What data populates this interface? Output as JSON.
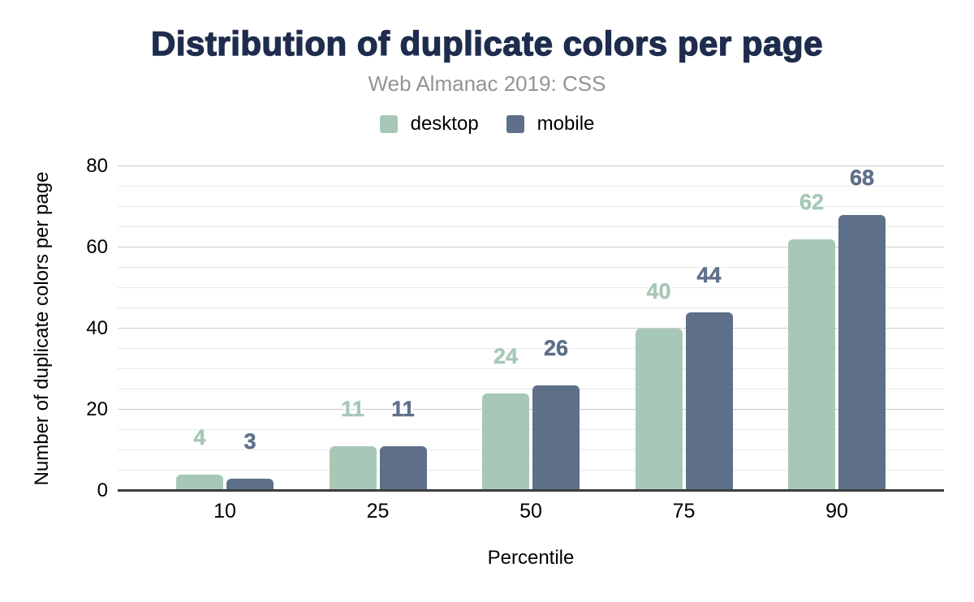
{
  "chart_data": {
    "type": "bar",
    "title": "Distribution of duplicate colors per page",
    "subtitle": "Web Almanac 2019: CSS",
    "xlabel": "Percentile",
    "ylabel": "Number of duplicate colors per page",
    "categories": [
      "10",
      "25",
      "50",
      "75",
      "90"
    ],
    "series": [
      {
        "name": "desktop",
        "color": "#a7c8b6",
        "values": [
          4,
          11,
          24,
          40,
          62
        ]
      },
      {
        "name": "mobile",
        "color": "#5e7089",
        "values": [
          3,
          11,
          26,
          44,
          68
        ]
      }
    ],
    "ylim": [
      0,
      80
    ],
    "y_major_ticks": [
      0,
      20,
      40,
      60,
      80
    ],
    "y_minor_step": 5,
    "grid": true,
    "legend_position": "top",
    "data_labels": true,
    "theme": {
      "background": "#ffffff",
      "title_color": "#1e2c4d",
      "subtitle_color": "#919498",
      "tick_label_color": "#000000",
      "gridline_minor_color": "#e8e8e8",
      "gridline_major_color": "#cbcbcb",
      "axis_line_color": "#3d3d3d"
    }
  }
}
